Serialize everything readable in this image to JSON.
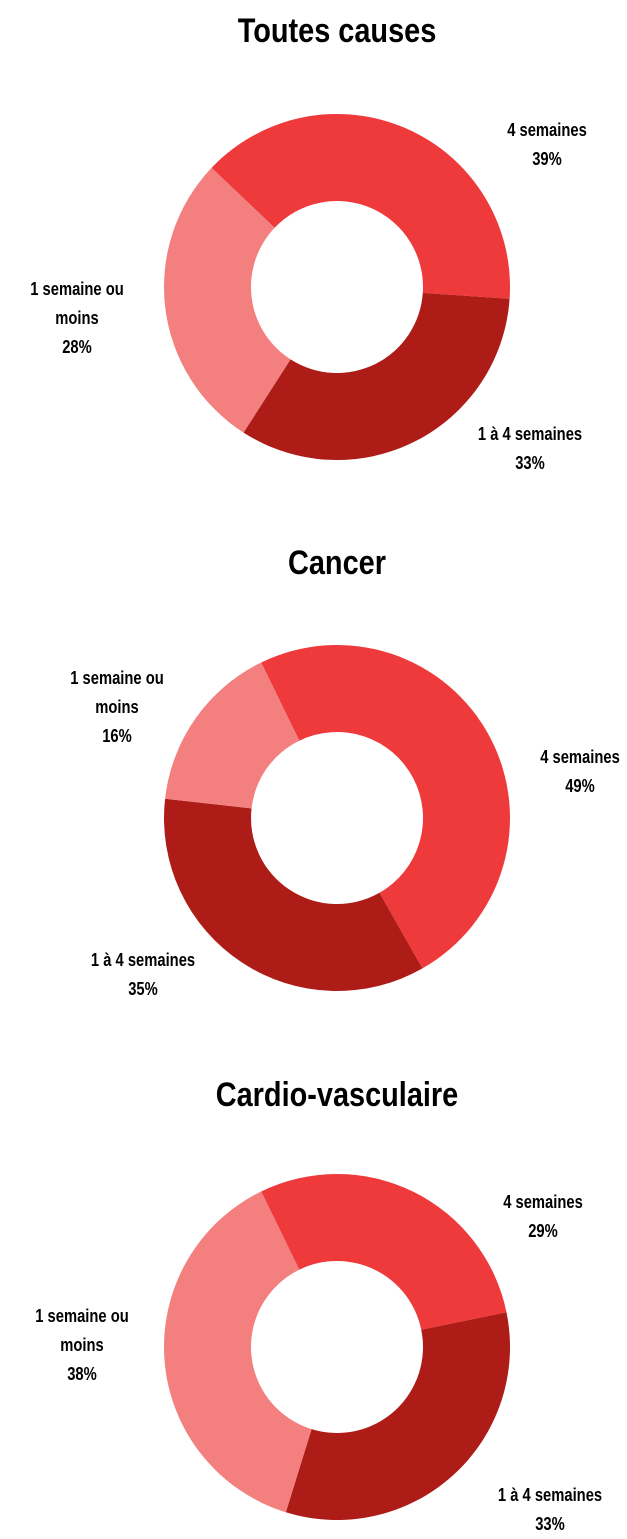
{
  "chart_data": [
    {
      "type": "donut",
      "title": "Toutes causes",
      "categories": [
        "4 semaines",
        "1 à 4 semaines",
        "1 semaine ou moins"
      ],
      "values": [
        39,
        33,
        28
      ],
      "value_labels": [
        "39%",
        "33%",
        "28%"
      ],
      "colors": [
        "#ef3a3c",
        "#ae1c18",
        "#f47f7f"
      ]
    },
    {
      "type": "donut",
      "title": "Cancer",
      "categories": [
        "4 semaines",
        "1 à 4 semaines",
        "1 semaine ou moins"
      ],
      "values": [
        49,
        35,
        16
      ],
      "value_labels": [
        "49%",
        "35%",
        "16%"
      ],
      "colors": [
        "#ef3a3c",
        "#ae1c18",
        "#f47f7f"
      ]
    },
    {
      "type": "donut",
      "title": "Cardio-vasculaire",
      "categories": [
        "4 semaines",
        "1 à 4 semaines",
        "1 semaine ou moins"
      ],
      "values": [
        29,
        33,
        38
      ],
      "value_labels": [
        "29%",
        "33%",
        "38%"
      ],
      "colors": [
        "#ef3a3c",
        "#ae1c18",
        "#f47f7f"
      ]
    }
  ]
}
